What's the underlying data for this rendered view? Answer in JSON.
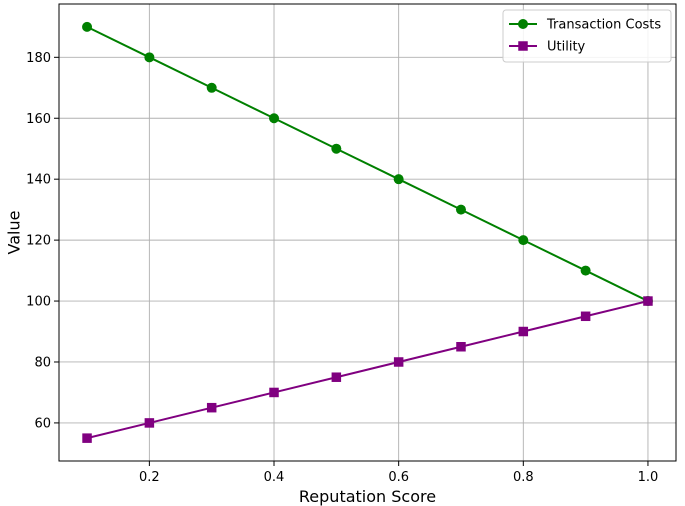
{
  "chart_data": {
    "type": "line",
    "xlabel": "Reputation Score",
    "ylabel": "Value",
    "xlim": [
      0.055,
      1.045
    ],
    "ylim": [
      47.5,
      197.5
    ],
    "xticks": [
      0.2,
      0.4,
      0.6,
      0.8,
      1.0
    ],
    "xtick_labels": [
      "0.2",
      "0.4",
      "0.6",
      "0.8",
      "1.0"
    ],
    "yticks": [
      60,
      80,
      100,
      120,
      140,
      160,
      180
    ],
    "ytick_labels": [
      "60",
      "80",
      "100",
      "120",
      "140",
      "160",
      "180"
    ],
    "grid": true,
    "legend_position": "top-right",
    "x": [
      0.1,
      0.2,
      0.3,
      0.4,
      0.5,
      0.6,
      0.7,
      0.8,
      0.9,
      1.0
    ],
    "series": [
      {
        "name": "Transaction Costs",
        "color": "#008000",
        "marker": "circle",
        "values": [
          190,
          180,
          170,
          160,
          150,
          140,
          130,
          120,
          110,
          100
        ]
      },
      {
        "name": "Utility",
        "color": "#800080",
        "marker": "square",
        "values": [
          55,
          60,
          65,
          70,
          75,
          80,
          85,
          90,
          95,
          100
        ]
      }
    ]
  }
}
